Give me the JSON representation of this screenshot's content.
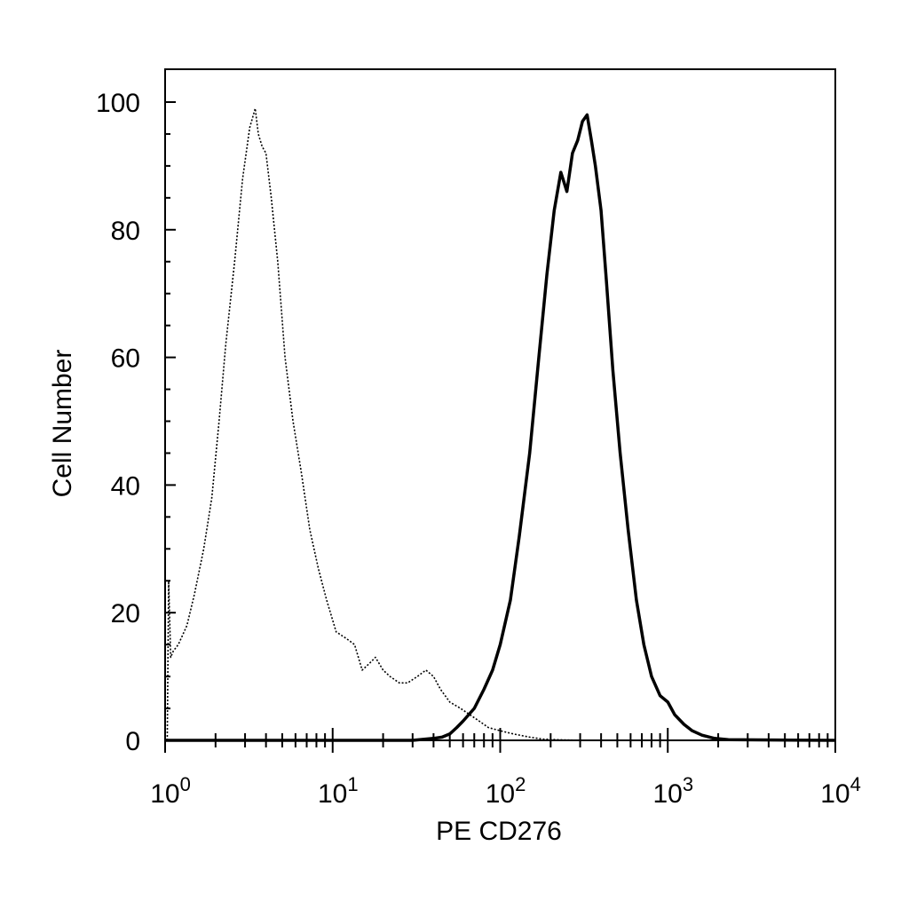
{
  "chart_data": {
    "type": "line",
    "title": "",
    "xlabel": "PE  CD276",
    "ylabel": "Cell Number",
    "x_scale": "log10",
    "xlim": [
      1,
      10000
    ],
    "ylim": [
      0,
      100
    ],
    "grid": false,
    "legend": "none",
    "x_tick_labels": [
      {
        "value": 1,
        "base": "10",
        "exp": "0"
      },
      {
        "value": 10,
        "base": "10",
        "exp": "1"
      },
      {
        "value": 100,
        "base": "10",
        "exp": "2"
      },
      {
        "value": 1000,
        "base": "10",
        "exp": "3"
      },
      {
        "value": 10000,
        "base": "10",
        "exp": "4"
      }
    ],
    "y_ticks": [
      0,
      20,
      40,
      60,
      80,
      100
    ],
    "series": [
      {
        "style": "dotted",
        "color": "#000000",
        "x": [
          1.03,
          1.05,
          1.08,
          1.12,
          1.2,
          1.35,
          1.5,
          1.7,
          1.9,
          2.1,
          2.3,
          2.6,
          2.9,
          3.2,
          3.45,
          3.6,
          3.8,
          4.0,
          4.3,
          4.7,
          5.2,
          5.8,
          6.5,
          7.3,
          8.2,
          9.2,
          10.5,
          12.0,
          13.5,
          15.0,
          16.5,
          18.0,
          20.0,
          22.0,
          25.0,
          28.0,
          32.0,
          36.0,
          40.0,
          44.0,
          50.0,
          58.0,
          66.0,
          75.0,
          85.0,
          100.0,
          120.0,
          150.0,
          180.0,
          220.0,
          300.0,
          10000.0
        ],
        "y": [
          0,
          25,
          13,
          14,
          15,
          18,
          23,
          30,
          38,
          50,
          62,
          75,
          88,
          96,
          99,
          95,
          93,
          92,
          85,
          75,
          60,
          50,
          42,
          33,
          27,
          22,
          17,
          16,
          15,
          11,
          12,
          13,
          11,
          10,
          9,
          9,
          10,
          11,
          10,
          8,
          6,
          5,
          4,
          3,
          2,
          1.5,
          1,
          0.5,
          0.2,
          0.1,
          0,
          0
        ]
      },
      {
        "style": "solid",
        "color": "#000000",
        "x": [
          1.0,
          30.0,
          40.0,
          45.0,
          50.0,
          55.0,
          60.0,
          70.0,
          80.0,
          90.0,
          100.0,
          115.0,
          130.0,
          150.0,
          170.0,
          190.0,
          210.0,
          230.0,
          250.0,
          270.0,
          290.0,
          310.0,
          330.0,
          350.0,
          370.0,
          400.0,
          430.0,
          470.0,
          520.0,
          580.0,
          650.0,
          720.0,
          800.0,
          900.0,
          1000.0,
          1100.0,
          1250.0,
          1400.0,
          1600.0,
          1900.0,
          2300.0,
          10000.0
        ],
        "y": [
          0,
          0,
          0.3,
          0.5,
          1,
          2,
          3,
          5,
          8,
          11,
          15,
          22,
          32,
          45,
          60,
          73,
          83,
          89,
          86,
          92,
          94,
          97,
          98,
          94,
          90,
          83,
          72,
          58,
          45,
          33,
          22,
          15,
          10,
          7,
          6,
          4,
          2.5,
          1.5,
          0.8,
          0.3,
          0.1,
          0
        ]
      }
    ]
  }
}
